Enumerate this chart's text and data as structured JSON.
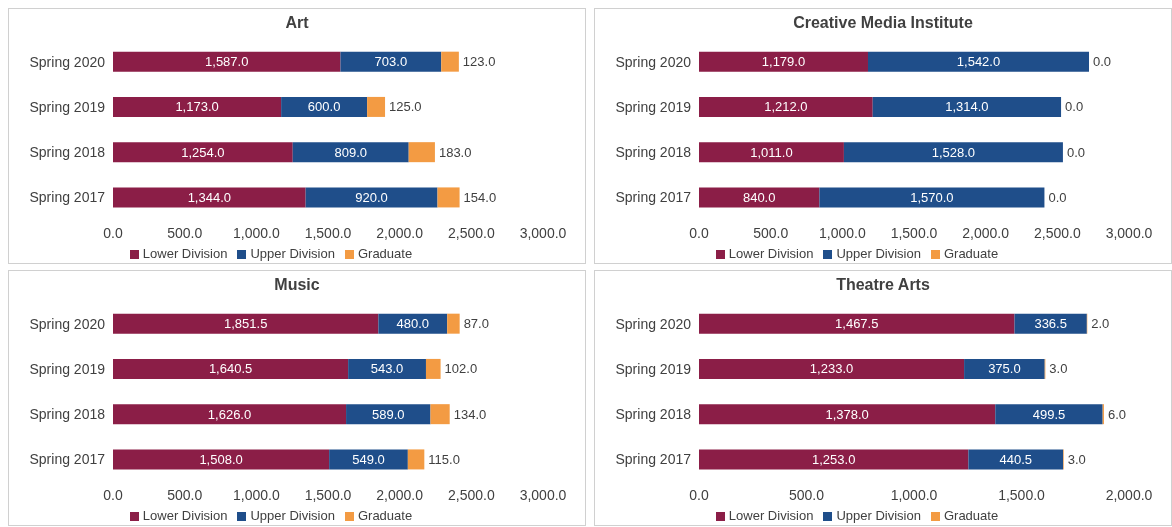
{
  "chart_data": [
    {
      "type": "bar",
      "orientation": "horizontal",
      "stacked": true,
      "title": "Art",
      "categories": [
        "Spring 2020",
        "Spring 2019",
        "Spring 2018",
        "Spring 2017"
      ],
      "series": [
        {
          "name": "Lower Division",
          "color": "#8b1e47",
          "values": [
            1587,
            1173,
            1254,
            1344
          ],
          "value_labels": [
            "1,587.0",
            "1,173.0",
            "1,254.0",
            "1,344.0"
          ]
        },
        {
          "name": "Upper Division",
          "color": "#1f4e8a",
          "values": [
            703,
            600,
            809,
            920
          ],
          "value_labels": [
            "703.0",
            "600.0",
            "809.0",
            "920.0"
          ]
        },
        {
          "name": "Graduate",
          "color": "#f39b43",
          "values": [
            123,
            125,
            183,
            154
          ],
          "value_labels": [
            "123.0",
            "125.0",
            "183.0",
            "154.0"
          ]
        }
      ],
      "xlim": [
        0,
        3000
      ],
      "xticks": [
        {
          "value": 0,
          "label": "0.0"
        },
        {
          "value": 500,
          "label": "500.0"
        },
        {
          "value": 1000,
          "label": "1,000.0"
        },
        {
          "value": 1500,
          "label": "1,500.0"
        },
        {
          "value": 2000,
          "label": "2,000.0"
        },
        {
          "value": 2500,
          "label": "2,500.0"
        },
        {
          "value": 3000,
          "label": "3,000.0"
        }
      ],
      "legend": "bottom",
      "grid": false
    },
    {
      "type": "bar",
      "orientation": "horizontal",
      "stacked": true,
      "title": "Creative Media Institute",
      "categories": [
        "Spring 2020",
        "Spring 2019",
        "Spring 2018",
        "Spring 2017"
      ],
      "series": [
        {
          "name": "Lower Division",
          "color": "#8b1e47",
          "values": [
            1179,
            1212,
            1011,
            840
          ],
          "value_labels": [
            "1,179.0",
            "1,212.0",
            "1,011.0",
            "840.0"
          ]
        },
        {
          "name": "Upper Division",
          "color": "#1f4e8a",
          "values": [
            1542,
            1314,
            1528,
            1570
          ],
          "value_labels": [
            "1,542.0",
            "1,314.0",
            "1,528.0",
            "1,570.0"
          ]
        },
        {
          "name": "Graduate",
          "color": "#f39b43",
          "values": [
            0,
            0,
            0,
            0
          ],
          "value_labels": [
            "0.0",
            "0.0",
            "0.0",
            "0.0"
          ]
        }
      ],
      "xlim": [
        0,
        3000
      ],
      "xticks": [
        {
          "value": 0,
          "label": "0.0"
        },
        {
          "value": 500,
          "label": "500.0"
        },
        {
          "value": 1000,
          "label": "1,000.0"
        },
        {
          "value": 1500,
          "label": "1,500.0"
        },
        {
          "value": 2000,
          "label": "2,000.0"
        },
        {
          "value": 2500,
          "label": "2,500.0"
        },
        {
          "value": 3000,
          "label": "3,000.0"
        }
      ],
      "legend": "bottom",
      "grid": false
    },
    {
      "type": "bar",
      "orientation": "horizontal",
      "stacked": true,
      "title": "Music",
      "categories": [
        "Spring 2020",
        "Spring 2019",
        "Spring 2018",
        "Spring 2017"
      ],
      "series": [
        {
          "name": "Lower Division",
          "color": "#8b1e47",
          "values": [
            1851.5,
            1640.5,
            1626,
            1508
          ],
          "value_labels": [
            "1,851.5",
            "1,640.5",
            "1,626.0",
            "1,508.0"
          ]
        },
        {
          "name": "Upper Division",
          "color": "#1f4e8a",
          "values": [
            480,
            543,
            589,
            549
          ],
          "value_labels": [
            "480.0",
            "543.0",
            "589.0",
            "549.0"
          ]
        },
        {
          "name": "Graduate",
          "color": "#f39b43",
          "values": [
            87,
            102,
            134,
            115
          ],
          "value_labels": [
            "87.0",
            "102.0",
            "134.0",
            "115.0"
          ]
        }
      ],
      "xlim": [
        0,
        3000
      ],
      "xticks": [
        {
          "value": 0,
          "label": "0.0"
        },
        {
          "value": 500,
          "label": "500.0"
        },
        {
          "value": 1000,
          "label": "1,000.0"
        },
        {
          "value": 1500,
          "label": "1,500.0"
        },
        {
          "value": 2000,
          "label": "2,000.0"
        },
        {
          "value": 2500,
          "label": "2,500.0"
        },
        {
          "value": 3000,
          "label": "3,000.0"
        }
      ],
      "legend": "bottom",
      "grid": false
    },
    {
      "type": "bar",
      "orientation": "horizontal",
      "stacked": true,
      "title": "Theatre Arts",
      "categories": [
        "Spring 2020",
        "Spring 2019",
        "Spring 2018",
        "Spring 2017"
      ],
      "series": [
        {
          "name": "Lower Division",
          "color": "#8b1e47",
          "values": [
            1467.5,
            1233,
            1378,
            1253
          ],
          "value_labels": [
            "1,467.5",
            "1,233.0",
            "1,378.0",
            "1,253.0"
          ]
        },
        {
          "name": "Upper Division",
          "color": "#1f4e8a",
          "values": [
            336.5,
            375,
            499.5,
            440.5
          ],
          "value_labels": [
            "336.5",
            "375.0",
            "499.5",
            "440.5"
          ]
        },
        {
          "name": "Graduate",
          "color": "#f39b43",
          "values": [
            2,
            3,
            6,
            3
          ],
          "value_labels": [
            "2.0",
            "3.0",
            "6.0",
            "3.0"
          ]
        }
      ],
      "xlim": [
        0,
        2000
      ],
      "xticks": [
        {
          "value": 0,
          "label": "0.0"
        },
        {
          "value": 500,
          "label": "500.0"
        },
        {
          "value": 1000,
          "label": "1,000.0"
        },
        {
          "value": 1500,
          "label": "1,500.0"
        },
        {
          "value": 2000,
          "label": "2,000.0"
        }
      ],
      "legend": "bottom",
      "grid": false
    }
  ]
}
